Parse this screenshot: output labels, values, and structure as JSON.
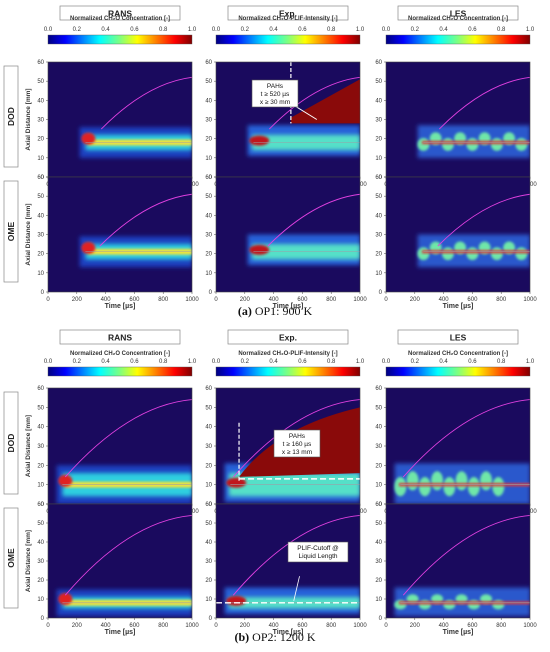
{
  "figure": {
    "column_titles": [
      "RANS",
      "Exp.",
      "LES"
    ],
    "colorbar_labels": [
      "Normalized CH₂O Concentration [-]",
      "Normalized CH₂O-PLIF-Intensity [-]",
      "Normalized CH₂O Concentration [-]"
    ],
    "colorbar_ticks": [
      "0.0",
      "0.2",
      "0.4",
      "0.6",
      "0.8",
      "1.0"
    ],
    "row_labels_a": [
      "DOD",
      "OME"
    ],
    "row_labels_b": [
      "DOD",
      "OME"
    ],
    "ylabel": "Axial Distance [mm]",
    "xlabel": "Time [µs]",
    "xticks": [
      "0",
      "200",
      "400",
      "600",
      "800",
      "1000"
    ],
    "yticks": [
      "0",
      "10",
      "20",
      "30",
      "40",
      "50",
      "60"
    ],
    "caption_a_label": "(a)",
    "caption_a_text": "OP1: 900 K",
    "caption_b_label": "(b)",
    "caption_b_text": "OP2: 1200 K",
    "annotations": {
      "a_dod_exp": [
        "PAHs",
        "t ≥ 520 µs",
        "x ≥ 30 mm"
      ],
      "b_dod_exp": [
        "PAHs",
        "t ≥ 160 µs",
        "x ≥ 13 mm"
      ],
      "b_ome_exp": [
        "PLIF-Cutoff @",
        "Liquid Length"
      ]
    }
  },
  "chart_data": {
    "type": "heatmap",
    "x": [
      0,
      1000
    ],
    "xlabel": "Time [µs]",
    "ylabel": "Axial Distance [mm]",
    "xlim": [
      0,
      1000
    ],
    "ylim": [
      0,
      60
    ],
    "colorbar_range": [
      0,
      1
    ],
    "magenta_line_endpoints": {
      "OP1_DOD": [
        [
          370,
          25
        ],
        [
          1000,
          52
        ]
      ],
      "OP1_OME": [
        [
          360,
          24
        ],
        [
          1000,
          51
        ]
      ],
      "OP2_DOD": [
        [
          120,
          14
        ],
        [
          1000,
          54
        ]
      ],
      "OP2_OME": [
        [
          120,
          12
        ],
        [
          1000,
          54
        ]
      ]
    }
  }
}
